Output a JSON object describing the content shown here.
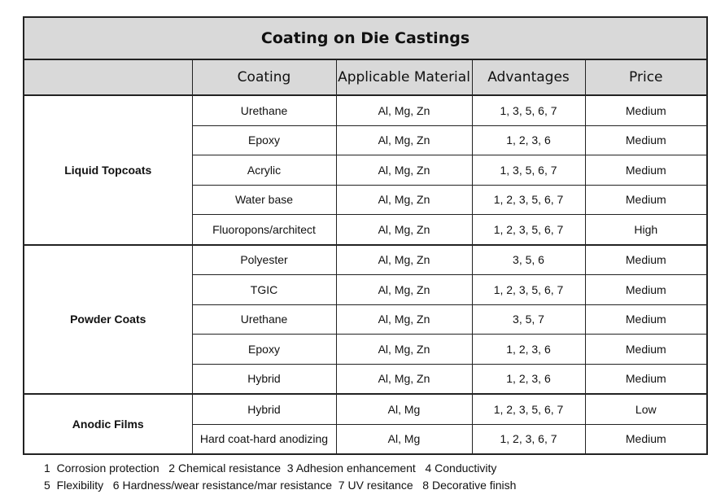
{
  "table": {
    "title": "Coating on Die Castings",
    "headers": [
      "",
      "Coating",
      "Applicable Material",
      "Advantages",
      "Price"
    ],
    "groups": [
      {
        "name": "Liquid Topcoats",
        "rows": [
          {
            "coating": "Urethane",
            "material": "Al, Mg, Zn",
            "advantages": "1, 3, 5, 6, 7",
            "price": "Medium"
          },
          {
            "coating": "Epoxy",
            "material": "Al, Mg, Zn",
            "advantages": "1, 2, 3, 6",
            "price": "Medium"
          },
          {
            "coating": "Acrylic",
            "material": "Al, Mg, Zn",
            "advantages": "1, 3, 5, 6, 7",
            "price": "Medium"
          },
          {
            "coating": "Water base",
            "material": "Al, Mg, Zn",
            "advantages": "1, 2, 3, 5, 6, 7",
            "price": "Medium"
          },
          {
            "coating": "Fluoropons/architect",
            "material": "Al, Mg, Zn",
            "advantages": "1, 2, 3, 5, 6, 7",
            "price": "High"
          }
        ]
      },
      {
        "name": "Powder Coats",
        "rows": [
          {
            "coating": "Polyester",
            "material": "Al, Mg, Zn",
            "advantages": "3, 5, 6",
            "price": "Medium"
          },
          {
            "coating": "TGIC",
            "material": "Al, Mg, Zn",
            "advantages": "1, 2, 3, 5, 6, 7",
            "price": "Medium"
          },
          {
            "coating": "Urethane",
            "material": "Al, Mg, Zn",
            "advantages": "3, 5, 7",
            "price": "Medium"
          },
          {
            "coating": "Epoxy",
            "material": "Al, Mg, Zn",
            "advantages": "1, 2, 3, 6",
            "price": "Medium"
          },
          {
            "coating": "Hybrid",
            "material": "Al, Mg, Zn",
            "advantages": "1, 2, 3, 6",
            "price": "Medium"
          }
        ]
      },
      {
        "name": "Anodic Films",
        "rows": [
          {
            "coating": "Hybrid",
            "material": "Al, Mg",
            "advantages": "1, 2, 3, 5, 6, 7",
            "price": "Low"
          },
          {
            "coating": "Hard coat-hard anodizing",
            "material": "Al, Mg",
            "advantages": "1, 2, 3, 6, 7",
            "price": "Medium"
          }
        ]
      }
    ]
  },
  "legend": {
    "line1": "1  Corrosion protection   2 Chemical resistance  3 Adhesion enhancement   4 Conductivity",
    "line2": "5  Flexibility   6 Hardness/wear resistance/mar resistance  7 UV resitance   8 Decorative finish"
  },
  "colors": {
    "header_bg": "#d9d9d9",
    "border": "#222222"
  }
}
